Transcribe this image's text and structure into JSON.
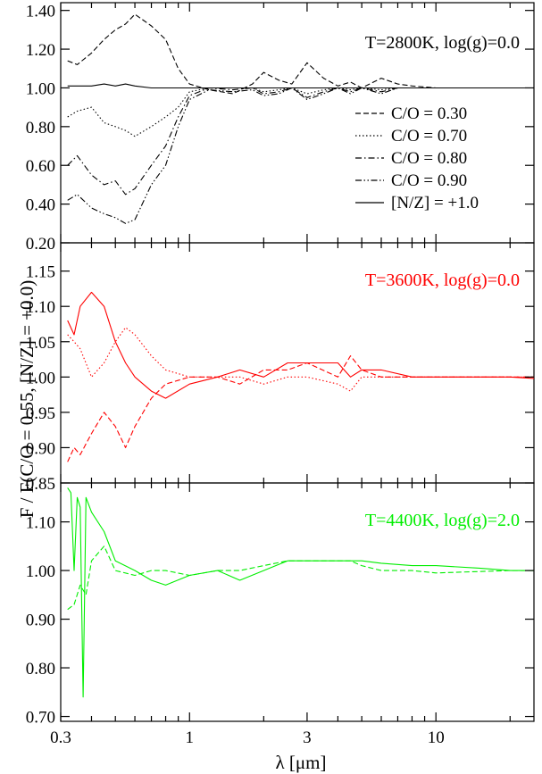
{
  "chart_data": {
    "type": "line",
    "xlabel": "λ [μm]",
    "ylabel": "F / F(C/O = 0.55, [N/Z] = +0.0)",
    "x_scale": "log",
    "xlim": [
      0.3,
      25
    ],
    "x_ticks": [
      {
        "value": 0.3,
        "label": "0.3"
      },
      {
        "value": 1,
        "label": "1"
      },
      {
        "value": 3,
        "label": "3"
      },
      {
        "value": 10,
        "label": "10"
      }
    ],
    "legend": [
      {
        "label": "C/O = 0.30",
        "dash": "dashed"
      },
      {
        "label": "C/O = 0.70",
        "dash": "dotted"
      },
      {
        "label": "C/O = 0.80",
        "dash": "dash-dot"
      },
      {
        "label": "C/O = 0.90",
        "dash": "dash-dot-dot"
      },
      {
        "label": "[N/Z] = +1.0",
        "dash": "solid"
      }
    ],
    "panels": [
      {
        "title": "T=2800K, log(g)=0.0",
        "color": "#000000",
        "ylim": [
          0.2,
          1.44
        ],
        "y_ticks": [
          "0.20",
          "0.40",
          "0.60",
          "0.80",
          "1.00",
          "1.20",
          "1.40"
        ],
        "legend_placement": "right",
        "series": [
          {
            "name": "C/O = 0.30",
            "dash": "dashed",
            "x": [
              0.32,
              0.35,
              0.4,
              0.45,
              0.5,
              0.55,
              0.6,
              0.7,
              0.8,
              0.9,
              1.0,
              1.2,
              1.5,
              1.8,
              2.0,
              2.3,
              2.6,
              3.0,
              3.5,
              4.0,
              4.5,
              5.0,
              6.0,
              7.0,
              8.0,
              10,
              15,
              20,
              25
            ],
            "y": [
              1.14,
              1.12,
              1.18,
              1.25,
              1.3,
              1.33,
              1.38,
              1.32,
              1.25,
              1.1,
              1.02,
              0.99,
              0.97,
              1.02,
              1.08,
              1.04,
              1.02,
              1.13,
              1.05,
              1.01,
              1.03,
              1.0,
              1.05,
              1.02,
              1.01,
              1.0,
              1.0,
              1.0,
              1.0
            ]
          },
          {
            "name": "C/O = 0.70",
            "dash": "dotted",
            "x": [
              0.32,
              0.35,
              0.4,
              0.45,
              0.5,
              0.55,
              0.6,
              0.7,
              0.8,
              0.9,
              1.0,
              1.2,
              1.5,
              1.8,
              2.0,
              2.3,
              2.6,
              3.0,
              3.5,
              4.0,
              4.5,
              5.0,
              6.0,
              7.0,
              8.0,
              10,
              15,
              20,
              25
            ],
            "y": [
              0.85,
              0.88,
              0.9,
              0.82,
              0.8,
              0.78,
              0.75,
              0.8,
              0.85,
              0.9,
              0.98,
              1.0,
              1.0,
              1.0,
              0.98,
              0.99,
              1.0,
              0.97,
              0.99,
              1.0,
              0.99,
              1.0,
              0.99,
              1.0,
              1.0,
              1.0,
              1.0,
              1.0,
              1.0
            ]
          },
          {
            "name": "C/O = 0.80",
            "dash": "dash-dot",
            "x": [
              0.32,
              0.35,
              0.4,
              0.45,
              0.5,
              0.55,
              0.6,
              0.7,
              0.8,
              0.9,
              1.0,
              1.2,
              1.5,
              1.8,
              2.0,
              2.3,
              2.6,
              3.0,
              3.5,
              4.0,
              4.5,
              5.0,
              6.0,
              7.0,
              8.0,
              10,
              15,
              20,
              25
            ],
            "y": [
              0.6,
              0.65,
              0.55,
              0.5,
              0.52,
              0.45,
              0.48,
              0.6,
              0.7,
              0.85,
              0.96,
              1.0,
              0.99,
              1.0,
              0.97,
              0.98,
              1.0,
              0.95,
              0.98,
              1.0,
              0.98,
              1.0,
              0.98,
              1.0,
              1.0,
              1.0,
              1.0,
              1.0,
              1.0
            ]
          },
          {
            "name": "C/O = 0.90",
            "dash": "dash-dot-dot",
            "x": [
              0.32,
              0.35,
              0.4,
              0.45,
              0.5,
              0.55,
              0.6,
              0.7,
              0.8,
              0.9,
              1.0,
              1.2,
              1.5,
              1.8,
              2.0,
              2.3,
              2.6,
              3.0,
              3.5,
              4.0,
              4.5,
              5.0,
              6.0,
              7.0,
              8.0,
              10,
              15,
              20,
              25
            ],
            "y": [
              0.42,
              0.45,
              0.38,
              0.35,
              0.33,
              0.3,
              0.32,
              0.5,
              0.6,
              0.8,
              0.94,
              0.99,
              0.98,
              0.99,
              0.96,
              0.97,
              1.0,
              0.94,
              0.97,
              1.0,
              0.97,
              1.0,
              0.97,
              1.0,
              1.0,
              1.0,
              1.0,
              1.0,
              1.0
            ]
          },
          {
            "name": "[N/Z] = +1.0",
            "dash": "solid",
            "x": [
              0.32,
              0.35,
              0.4,
              0.45,
              0.5,
              0.55,
              0.6,
              0.7,
              0.8,
              0.9,
              1.0,
              1.2,
              1.5,
              1.8,
              2.0,
              2.3,
              2.6,
              3.0,
              3.5,
              4.0,
              4.5,
              5.0,
              6.0,
              7.0,
              8.0,
              10,
              15,
              20,
              25
            ],
            "y": [
              1.01,
              1.01,
              1.01,
              1.02,
              1.01,
              1.02,
              1.01,
              1.0,
              1.0,
              1.0,
              1.0,
              1.0,
              1.0,
              1.0,
              1.0,
              1.0,
              1.0,
              1.0,
              1.0,
              1.0,
              1.0,
              1.0,
              1.0,
              1.0,
              1.0,
              1.0,
              1.0,
              1.0,
              1.0
            ]
          }
        ]
      },
      {
        "title": "T=3600K, log(g)=0.0",
        "color": "#ff0000",
        "ylim": [
          0.85,
          1.19
        ],
        "y_ticks": [
          "0.85",
          "0.90",
          "0.95",
          "1.00",
          "1.05",
          "1.10",
          "1.15"
        ],
        "series": [
          {
            "name": "C/O = 0.30",
            "dash": "dashed",
            "x": [
              0.32,
              0.34,
              0.36,
              0.4,
              0.45,
              0.5,
              0.55,
              0.6,
              0.7,
              0.8,
              1.0,
              1.3,
              1.6,
              2.0,
              2.5,
              3.0,
              4.0,
              4.5,
              5.0,
              6.0,
              8.0,
              10,
              15,
              20,
              25
            ],
            "y": [
              0.88,
              0.9,
              0.89,
              0.92,
              0.95,
              0.93,
              0.9,
              0.93,
              0.97,
              0.99,
              1.0,
              1.0,
              0.99,
              1.01,
              1.01,
              1.02,
              1.0,
              1.03,
              1.01,
              1.0,
              1.0,
              1.0,
              1.0,
              1.0,
              1.0
            ]
          },
          {
            "name": "C/O = 0.70",
            "dash": "dotted",
            "x": [
              0.32,
              0.34,
              0.36,
              0.4,
              0.45,
              0.5,
              0.55,
              0.6,
              0.7,
              0.8,
              1.0,
              1.3,
              1.6,
              2.0,
              2.5,
              3.0,
              4.0,
              4.5,
              5.0,
              6.0,
              8.0,
              10,
              15,
              20,
              25
            ],
            "y": [
              1.06,
              1.05,
              1.04,
              1.0,
              1.02,
              1.05,
              1.07,
              1.06,
              1.03,
              1.01,
              1.0,
              1.0,
              1.0,
              0.99,
              1.0,
              1.0,
              0.99,
              0.98,
              1.0,
              1.0,
              1.0,
              1.0,
              1.0,
              1.0,
              1.0
            ]
          },
          {
            "name": "[N/Z] = +1.0",
            "dash": "solid",
            "x": [
              0.32,
              0.34,
              0.36,
              0.4,
              0.45,
              0.5,
              0.55,
              0.6,
              0.7,
              0.8,
              1.0,
              1.3,
              1.6,
              2.0,
              2.5,
              3.0,
              4.0,
              4.5,
              5.0,
              6.0,
              8.0,
              10,
              15,
              20,
              25
            ],
            "y": [
              1.08,
              1.06,
              1.1,
              1.12,
              1.1,
              1.05,
              1.02,
              1.0,
              0.98,
              0.97,
              0.99,
              1.0,
              1.01,
              1.0,
              1.02,
              1.02,
              1.02,
              1.0,
              1.01,
              1.01,
              1.0,
              1.0,
              1.0,
              1.0,
              0.998
            ]
          }
        ]
      },
      {
        "title": "T=4400K, log(g)=2.0",
        "color": "#00ee00",
        "ylim": [
          0.69,
          1.18
        ],
        "y_ticks": [
          "0.70",
          "0.80",
          "0.90",
          "1.00",
          "1.10"
        ],
        "series": [
          {
            "name": "C/O = 0.30",
            "dash": "dashed",
            "x": [
              0.32,
              0.34,
              0.36,
              0.38,
              0.4,
              0.45,
              0.5,
              0.6,
              0.7,
              0.8,
              1.0,
              1.3,
              1.6,
              2.0,
              2.5,
              3.0,
              4.0,
              4.5,
              5.0,
              6.0,
              8.0,
              10,
              15,
              20,
              25
            ],
            "y": [
              0.92,
              0.93,
              0.97,
              0.95,
              1.02,
              1.05,
              1.0,
              0.99,
              1.0,
              1.0,
              0.99,
              1.0,
              1.0,
              1.01,
              1.02,
              1.02,
              1.02,
              1.02,
              1.01,
              1.0,
              1.0,
              0.995,
              0.998,
              1.0,
              1.0
            ]
          },
          {
            "name": "[N/Z] = +1.0",
            "dash": "solid",
            "x": [
              0.32,
              0.33,
              0.34,
              0.35,
              0.36,
              0.37,
              0.38,
              0.4,
              0.45,
              0.5,
              0.6,
              0.7,
              0.8,
              1.0,
              1.3,
              1.6,
              2.0,
              2.5,
              3.0,
              4.0,
              5.0,
              6.0,
              8.0,
              10,
              15,
              20,
              25
            ],
            "y": [
              1.17,
              1.16,
              1.0,
              1.15,
              1.13,
              0.74,
              1.15,
              1.12,
              1.08,
              1.02,
              1.0,
              0.98,
              0.97,
              0.99,
              1.0,
              0.98,
              1.0,
              1.02,
              1.02,
              1.02,
              1.02,
              1.015,
              1.01,
              1.01,
              1.005,
              1.0,
              1.0
            ]
          }
        ]
      }
    ]
  }
}
